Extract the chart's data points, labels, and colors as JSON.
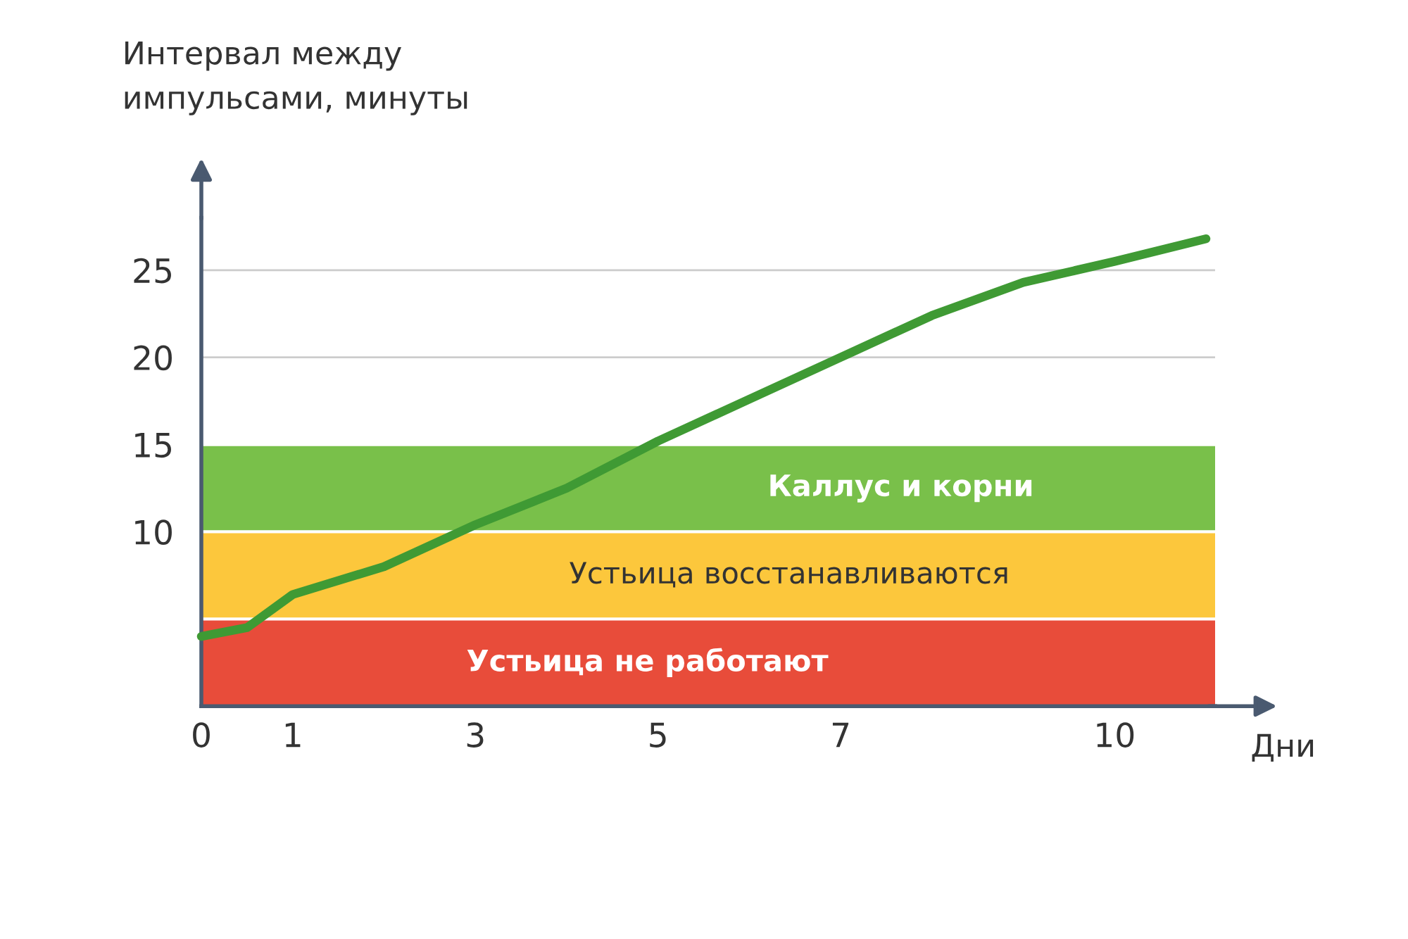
{
  "chart_data": {
    "type": "line",
    "ylabel": "Интервал между\nимпульсами, минуты",
    "xlabel": "Дни",
    "x": [
      0,
      0.5,
      1,
      2,
      3,
      4,
      5,
      6,
      7,
      8,
      9,
      10,
      11
    ],
    "series": [
      {
        "color": "#3f9a34",
        "values": [
          4,
          4.5,
          6.4,
          8,
          10.4,
          12.5,
          15.2,
          17.6,
          20,
          22.4,
          24.3,
          25.5,
          26.8
        ]
      }
    ],
    "xlim": [
      0,
      11.1
    ],
    "ylim": [
      0,
      28
    ],
    "xticks": [
      0,
      1,
      3,
      5,
      7,
      10
    ],
    "yticks": [
      10,
      15,
      20,
      25
    ],
    "bands": [
      {
        "axis": "y",
        "from": 0,
        "to": 5,
        "label": "Устьица не работают",
        "color": "#e84c3a"
      },
      {
        "axis": "y",
        "from": 5,
        "to": 10,
        "label": "Устьица восстанавливаются",
        "color": "#fcc73c"
      },
      {
        "axis": "y",
        "from": 10,
        "to": 15,
        "label": "Каллус и корни",
        "color": "#79c04a"
      }
    ],
    "grid": "y",
    "legend": false,
    "marker": "none",
    "line_style": "solid"
  }
}
